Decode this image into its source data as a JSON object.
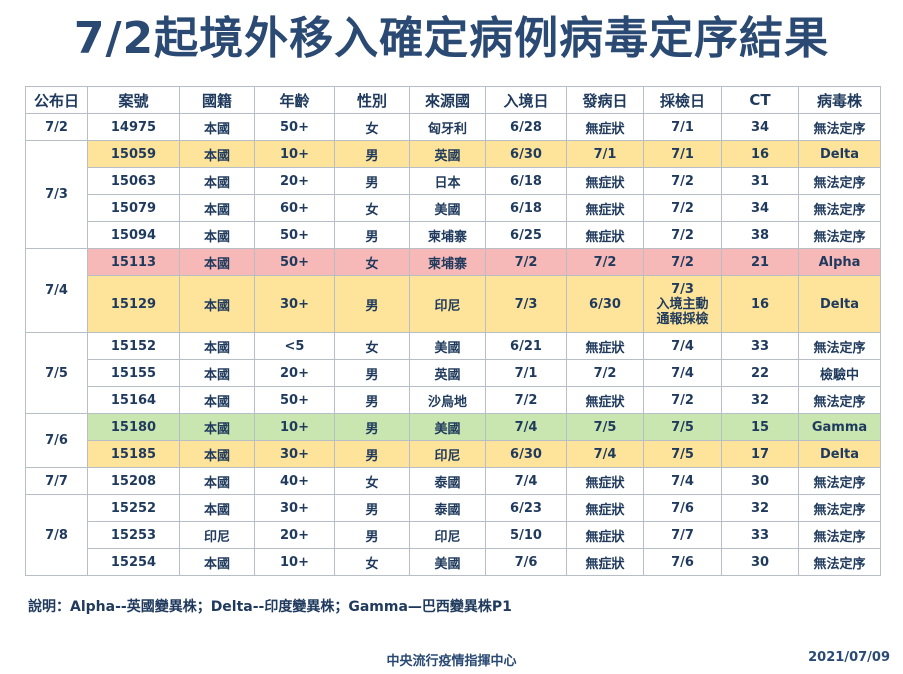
{
  "title": "7/2起境外移入確定病例病毒定序結果",
  "colors": {
    "yellow": "#fde49a",
    "red": "#f7b8b8",
    "green": "#c9e6b1",
    "white": "#ffffff"
  },
  "columns": [
    "公布日",
    "案號",
    "國籍",
    "年齡",
    "性別",
    "來源國",
    "入境日",
    "發病日",
    "採檢日",
    "CT",
    "病毒株"
  ],
  "groups": [
    {
      "date": "7/2",
      "rows": [
        {
          "color": "white",
          "cells": [
            "14975",
            "本國",
            "50+",
            "女",
            "匈牙利",
            "6/28",
            "無症狀",
            "7/1",
            "34",
            "無法定序"
          ]
        }
      ]
    },
    {
      "date": "7/3",
      "rows": [
        {
          "color": "yellow",
          "cells": [
            "15059",
            "本國",
            "10+",
            "男",
            "英國",
            "6/30",
            "7/1",
            "7/1",
            "16",
            "Delta"
          ]
        },
        {
          "color": "white",
          "cells": [
            "15063",
            "本國",
            "20+",
            "男",
            "日本",
            "6/18",
            "無症狀",
            "7/2",
            "31",
            "無法定序"
          ]
        },
        {
          "color": "white",
          "cells": [
            "15079",
            "本國",
            "60+",
            "女",
            "美國",
            "6/18",
            "無症狀",
            "7/2",
            "34",
            "無法定序"
          ]
        },
        {
          "color": "white",
          "cells": [
            "15094",
            "本國",
            "50+",
            "男",
            "柬埔寨",
            "6/25",
            "無症狀",
            "7/2",
            "38",
            "無法定序"
          ]
        }
      ]
    },
    {
      "date": "7/4",
      "rows": [
        {
          "color": "red",
          "cells": [
            "15113",
            "本國",
            "50+",
            "女",
            "柬埔寨",
            "7/2",
            "7/2",
            "7/2",
            "21",
            "Alpha"
          ]
        },
        {
          "color": "yellow",
          "tall": true,
          "cells": [
            "15129",
            "本國",
            "30+",
            "男",
            "印尼",
            "7/3",
            "6/30",
            "7/3\n入境主動\n通報採檢",
            "16",
            "Delta"
          ]
        }
      ]
    },
    {
      "date": "7/5",
      "rows": [
        {
          "color": "white",
          "cells": [
            "15152",
            "本國",
            "<5",
            "女",
            "美國",
            "6/21",
            "無症狀",
            "7/4",
            "33",
            "無法定序"
          ]
        },
        {
          "color": "white",
          "cells": [
            "15155",
            "本國",
            "20+",
            "男",
            "英國",
            "7/1",
            "7/2",
            "7/4",
            "22",
            "檢驗中"
          ]
        },
        {
          "color": "white",
          "cells": [
            "15164",
            "本國",
            "50+",
            "男",
            "沙烏地",
            "7/2",
            "無症狀",
            "7/2",
            "32",
            "無法定序"
          ]
        }
      ]
    },
    {
      "date": "7/6",
      "rows": [
        {
          "color": "green",
          "cells": [
            "15180",
            "本國",
            "10+",
            "男",
            "美國",
            "7/4",
            "7/5",
            "7/5",
            "15",
            "Gamma"
          ]
        },
        {
          "color": "yellow",
          "cells": [
            "15185",
            "本國",
            "30+",
            "男",
            "印尼",
            "6/30",
            "7/4",
            "7/5",
            "17",
            "Delta"
          ]
        }
      ]
    },
    {
      "date": "7/7",
      "rows": [
        {
          "color": "white",
          "cells": [
            "15208",
            "本國",
            "40+",
            "女",
            "泰國",
            "7/4",
            "無症狀",
            "7/4",
            "30",
            "無法定序"
          ]
        }
      ]
    },
    {
      "date": "7/8",
      "rows": [
        {
          "color": "white",
          "cells": [
            "15252",
            "本國",
            "30+",
            "男",
            "泰國",
            "6/23",
            "無症狀",
            "7/6",
            "32",
            "無法定序"
          ]
        },
        {
          "color": "white",
          "cells": [
            "15253",
            "印尼",
            "20+",
            "男",
            "印尼",
            "5/10",
            "無症狀",
            "7/7",
            "33",
            "無法定序"
          ]
        },
        {
          "color": "white",
          "cells": [
            "15254",
            "本國",
            "10+",
            "女",
            "美國",
            "7/6",
            "無症狀",
            "7/6",
            "30",
            "無法定序"
          ]
        }
      ]
    }
  ],
  "note": "說明：Alpha--英國變異株；Delta--印度變異株；Gamma—巴西變異株P1",
  "footer": {
    "org": "中央流行疫情指揮中心",
    "date": "2021/07/09"
  }
}
